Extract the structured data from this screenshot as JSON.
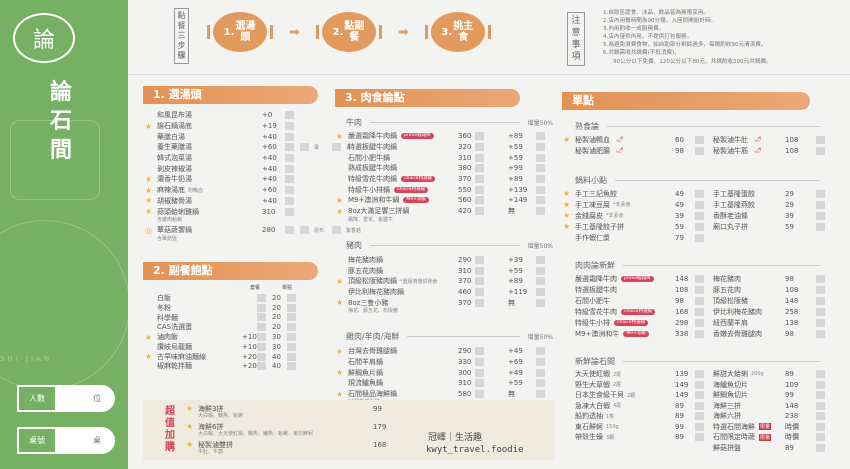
{
  "brand": {
    "logo_char": "論",
    "name": "論石間",
    "watermark": "SHI JIAN",
    "people_label": "人數",
    "people_unit": "位",
    "table_label": "桌號",
    "table_unit": "桌"
  },
  "steps": {
    "label": "點餐三步驟",
    "items": [
      {
        "num": "1.",
        "text": "選湯頭"
      },
      {
        "num": "2.",
        "text": "點副餐"
      },
      {
        "num": "3.",
        "text": "挑主食"
      }
    ]
  },
  "notice": {
    "label": "注意事項",
    "lines": [
      "1.自助區蔬食、冰品、飲品皆為無限享用。",
      "2.店內用餐時間為90分鐘，入座即開始計時。",
      "3.內用酌收一成服務費。",
      "4.店內僅供內用，不提供打包服務。",
      "5.為避免浪費食物，如自助部分剩餘過多，每鍋酌收90元清潔費。",
      "6.共鍋需收共鍋費(不抵消費)，",
      "90公分以下免費、120公分以下80元、共鍋酌收200元共鍋費。"
    ]
  },
  "soup": {
    "title": "1. 選湯頭",
    "items": [
      {
        "name": "和風昆布湯",
        "price": "+0"
      },
      {
        "star": true,
        "name": "論石鍋湯底",
        "price": "+19"
      },
      {
        "name": "藥膳白湯",
        "price": "+40"
      },
      {
        "name": "養生藥膳湯",
        "price": "+60",
        "options": [
          "葷",
          "素"
        ]
      },
      {
        "name": "韓式泡菜湯",
        "price": "+40"
      },
      {
        "name": "剝皮辣椒湯",
        "price": "+40"
      },
      {
        "star": true,
        "name": "濃香牛奶湯",
        "price": "+40"
      },
      {
        "star": true,
        "name": "麻辣湯底",
        "note": "附鴨血",
        "price": "+60"
      },
      {
        "star": true,
        "name": "胡椒豬骨湯",
        "price": "+40"
      },
      {
        "star": true,
        "name": "蒜頭蛤蜊雞鍋",
        "price": "310",
        "sub": "含雞肉蛤蜊"
      },
      {
        "circle": true,
        "name": "蕈菇蔬饗鍋",
        "price": "280",
        "options": [
          "昆布",
          "紫香菇"
        ],
        "sub": "含蕈菇盤"
      }
    ]
  },
  "sides": {
    "title": "2. 副餐飽點",
    "col_set": "套餐",
    "col_single": "單點",
    "items": [
      {
        "name": "白飯",
        "set": "",
        "single": "20"
      },
      {
        "name": "冬粉",
        "set": "",
        "single": "20"
      },
      {
        "name": "科學麵",
        "set": "",
        "single": "20"
      },
      {
        "name": "CAS洗選蛋",
        "set": "",
        "single": "20"
      },
      {
        "star": true,
        "name": "滷肉飯",
        "set": "+10",
        "single": "30"
      },
      {
        "name": "讚岐烏龍麵",
        "set": "+10",
        "single": "30"
      },
      {
        "star": true,
        "name": "古早味麻油麵線",
        "set": "+20",
        "single": "40"
      },
      {
        "name": "椒麻乾拌麵",
        "set": "+20",
        "single": "40"
      }
    ]
  },
  "meat": {
    "title": "3. 肉食論點",
    "groups": [
      {
        "name": "牛肉",
        "inc": "增量50%",
        "items": [
          {
            "star": true,
            "name": "嚴選霜降牛肉鍋",
            "tag": "prime級霜降",
            "price": "360",
            "add": "+89"
          },
          {
            "name": "特選板腱牛肉鍋",
            "price": "320",
            "add": "+59"
          },
          {
            "name": "石間小肥牛鍋",
            "price": "310",
            "add": "+59"
          },
          {
            "name": "熟成板腱牛肉鍋",
            "price": "380",
            "add": "+99"
          },
          {
            "name": "特級雪花牛肉鍋",
            "tag": "choice特選級",
            "price": "370",
            "add": "+89"
          },
          {
            "name": "特級牛小排鍋",
            "tag": "choice特選級",
            "price": "550",
            "add": "+139"
          },
          {
            "star": true,
            "name": "M9+澳洲和牛鍋",
            "tag": "M9+等級",
            "price": "560",
            "add": "+149"
          },
          {
            "star": true,
            "name": "8oz大滿足饗三拼鍋",
            "price": "420",
            "add": "無",
            "sub": "霜降、雪花、板腱牛"
          }
        ]
      },
      {
        "name": "豬肉",
        "inc": "增量50%",
        "items": [
          {
            "name": "梅花豬肉鍋",
            "price": "290",
            "add": "+39"
          },
          {
            "name": "豚五花肉鍋",
            "price": "310",
            "add": "+59"
          },
          {
            "star": true,
            "name": "頂級松阪豬肉鍋",
            "note": "*重組肉僅供熟食",
            "price": "370",
            "add": "+89"
          },
          {
            "name": "伊比利梅花豬肉鍋",
            "price": "460",
            "add": "+119"
          },
          {
            "star": true,
            "name": "8oz三隻小豬",
            "price": "370",
            "add": "無",
            "sub": "梅花、豚五花、松阪豬"
          }
        ]
      },
      {
        "name": "雞肉/羊肉/海鮮",
        "inc": "增量50%",
        "items": [
          {
            "star": true,
            "name": "台灣去骨雞腿鍋",
            "price": "290",
            "add": "+49"
          },
          {
            "name": "石間羊肩鍋",
            "price": "330",
            "add": "+69"
          },
          {
            "star": true,
            "name": "鮮鯛魚片鍋",
            "price": "300",
            "add": "+49"
          },
          {
            "name": "現流鱸魚鍋",
            "price": "310",
            "add": "+59"
          },
          {
            "star": true,
            "name": "石間極品海鮮鍋",
            "price": "580",
            "add": "無",
            "sub": "10種新鮮海鮮"
          }
        ]
      }
    ]
  },
  "alacarte": {
    "title": "單點",
    "groups": [
      {
        "name": "熟食論",
        "left": [
          {
            "star": true,
            "name": "秘製滷鴨血",
            "chili": true,
            "price": "60"
          },
          {
            "name": "秘製滷肥腸",
            "chili": true,
            "price": "98"
          }
        ],
        "right": [
          {
            "name": "秘製滷牛肚",
            "chili": true,
            "price": "108"
          },
          {
            "name": "秘製滷牛筋",
            "chili": true,
            "price": "108"
          }
        ]
      },
      {
        "name": "鍋料小點",
        "left": [
          {
            "star": true,
            "name": "手工三記魚餃",
            "price": "49"
          },
          {
            "star": true,
            "name": "手工凍豆腐",
            "note": "*非素食",
            "price": "49"
          },
          {
            "star": true,
            "name": "金錢腐皮",
            "note": "*非素食",
            "price": "39"
          },
          {
            "star": true,
            "name": "手工基隆餃子拼",
            "price": "59"
          },
          {
            "name": "手作蝦仁漿",
            "price": "79"
          }
        ],
        "right": [
          {
            "name": "手工基隆蛋餃",
            "price": "29"
          },
          {
            "name": "手工基隆燕餃",
            "price": "29"
          },
          {
            "name": "香酥老油條",
            "price": "39"
          },
          {
            "name": "廟口丸子拼",
            "price": "59"
          }
        ]
      },
      {
        "name": "肉肉論新鮮",
        "left": [
          {
            "name": "嚴選霜降牛肉",
            "tag": "prime級霜降",
            "price": "148"
          },
          {
            "name": "特選板腱牛肉",
            "price": "108"
          },
          {
            "name": "石間小肥牛",
            "price": "98"
          },
          {
            "name": "特級雪花牛肉",
            "tag": "choice特選級",
            "price": "168"
          },
          {
            "name": "特級牛小排",
            "tag": "choice特選級",
            "price": "298"
          },
          {
            "name": "M9+澳洲和牛",
            "tag": "M9+等級",
            "price": "338"
          }
        ],
        "right": [
          {
            "name": "梅花豬肉",
            "price": "98"
          },
          {
            "name": "豚五花肉",
            "price": "108"
          },
          {
            "name": "頂級松阪豬",
            "price": "148"
          },
          {
            "name": "伊比利梅花豬肉",
            "price": "258"
          },
          {
            "name": "紐西蘭羊肩",
            "price": "138"
          },
          {
            "name": "香嫩去骨雞腿肉",
            "price": "98"
          }
        ]
      },
      {
        "name": "新鮮論石間",
        "left": [
          {
            "name": "大天使紅蝦",
            "note": "2尾",
            "price": "139"
          },
          {
            "name": "野生大草蝦",
            "note": "2尾",
            "price": "149"
          },
          {
            "name": "日本生食級干貝",
            "note": "2顆",
            "price": "149"
          },
          {
            "name": "急凍大白蝦",
            "note": "4尾",
            "price": "89"
          },
          {
            "name": "船釣透抽",
            "note": "1隻",
            "price": "89"
          },
          {
            "name": "東石鮮蚵",
            "note": "150g",
            "price": "99"
          },
          {
            "name": "帶殼生蠔",
            "note": "3顆",
            "price": "89"
          }
        ],
        "right": [
          {
            "name": "鮮甜大蛤蜊",
            "note": "200g",
            "price": "89"
          },
          {
            "name": "海鱸魚切片",
            "price": "109"
          },
          {
            "name": "鮮鯛魚切片",
            "price": "99"
          },
          {
            "name": "海鮮三拼",
            "price": "148"
          },
          {
            "name": "海鮮六拼",
            "price": "238"
          },
          {
            "name": "特選石間海鮮",
            "seal": "限量",
            "price": "時價"
          },
          {
            "name": "石間限定時蔬",
            "seal": "限量",
            "price": "時價"
          },
          {
            "name": "鮮菇拼盤",
            "price": "89"
          }
        ]
      }
    ]
  },
  "addon": {
    "label": "超值加購",
    "items": [
      {
        "name": "海鮮3拼",
        "sub": "大白蝦、鯛魚、蛤蜊",
        "price": "99"
      },
      {
        "name": "海鮮6拼",
        "sub": "大白蝦、大天使紅蝦、鯛魚、鱸魚、蛤蜊、東石鮮蚵",
        "price": "179"
      },
      {
        "name": "秘製滷雙拼",
        "sub": "牛肚、牛筋",
        "price": "168"
      }
    ]
  },
  "credit": {
    "name": "冠嶧｜生活趣",
    "handle": "kwyt_travel.foodie"
  },
  "colors": {
    "green": "#76b063",
    "orange": "#e29254",
    "star": "#f0b43c",
    "tag": "#d4455a"
  }
}
